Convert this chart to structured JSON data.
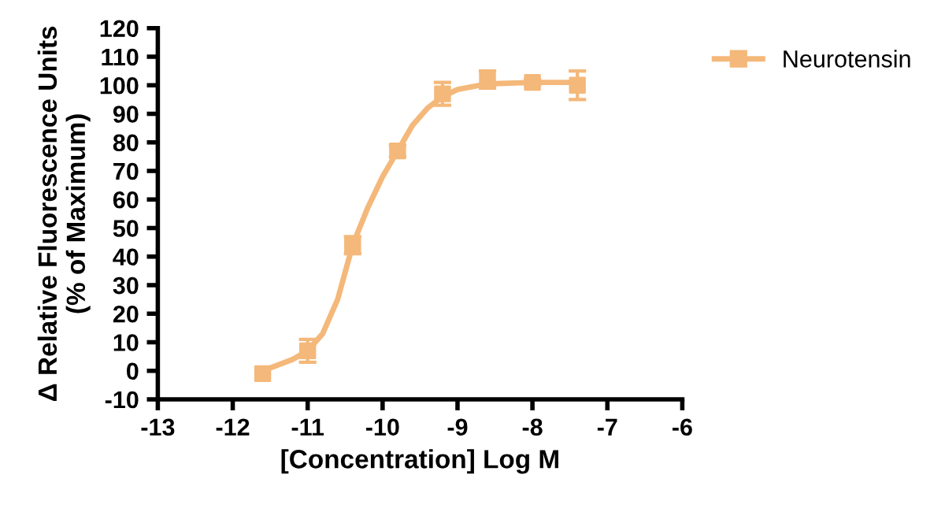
{
  "chart_data": {
    "type": "scatter",
    "xlabel": "[Concentration] Log M",
    "ylabel": "Δ Relative Fluorescence Units\n(% of Maximum)",
    "xlim": [
      -13,
      -6
    ],
    "xticks": [
      -13,
      -12,
      -11,
      -10,
      -9,
      -8,
      -7,
      -6
    ],
    "ylim": [
      -10,
      120
    ],
    "yticks": [
      -10,
      0,
      10,
      20,
      30,
      40,
      50,
      60,
      70,
      80,
      90,
      100,
      110,
      120
    ],
    "grid": false,
    "legend": "top right",
    "series": [
      {
        "name": "Neurotensin",
        "marker": "square",
        "color": "#f4b87a",
        "x": [
          -11.6,
          -11.0,
          -10.4,
          -9.8,
          -9.2,
          -8.6,
          -8.0,
          -7.4
        ],
        "values": [
          -1,
          7,
          44,
          77,
          97,
          102,
          101,
          100
        ],
        "errors": [
          null,
          4,
          3,
          2,
          4,
          3,
          1,
          5
        ]
      },
      {
        "type": "line",
        "marker": "none",
        "color": "#f4b87a",
        "x": [
          -11.6,
          -11.2,
          -11.0,
          -10.8,
          -10.6,
          -10.4,
          -10.2,
          -10.0,
          -9.8,
          -9.6,
          -9.4,
          -9.2,
          -9.0,
          -8.6,
          -8.0,
          -7.4
        ],
        "values": [
          0,
          4,
          7,
          13,
          25,
          44,
          57,
          68,
          77,
          86,
          92,
          96,
          98.5,
          100.5,
          101,
          101
        ]
      }
    ]
  }
}
